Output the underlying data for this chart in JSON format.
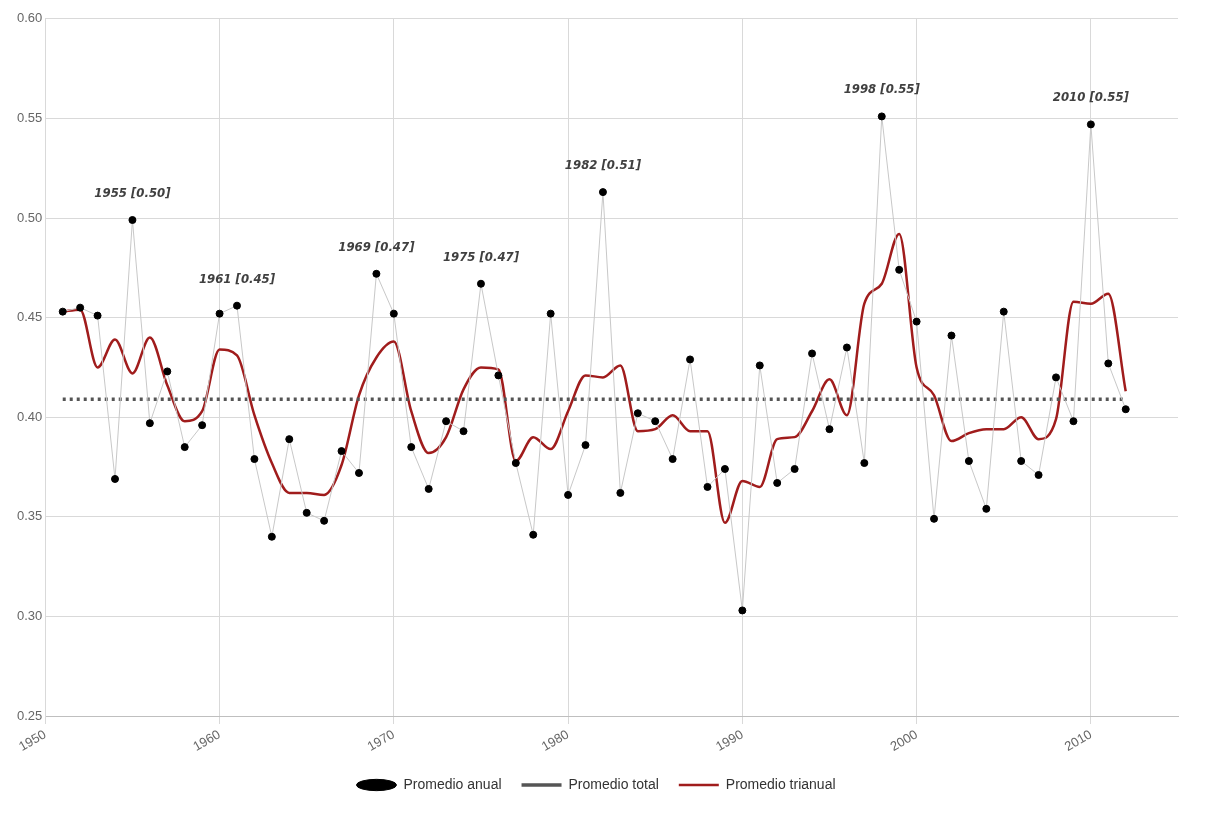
{
  "chart_data": {
    "type": "line",
    "x": [
      1951,
      1952,
      1953,
      1954,
      1955,
      1956,
      1957,
      1958,
      1959,
      1960,
      1961,
      1962,
      1963,
      1964,
      1965,
      1966,
      1967,
      1968,
      1969,
      1970,
      1971,
      1972,
      1973,
      1974,
      1975,
      1976,
      1977,
      1978,
      1979,
      1980,
      1981,
      1982,
      1983,
      1984,
      1985,
      1986,
      1987,
      1988,
      1989,
      1990,
      1991,
      1992,
      1993,
      1994,
      1995,
      1996,
      1997,
      1998,
      1999,
      2000,
      2001,
      2002,
      2003,
      2004,
      2005,
      2006,
      2007,
      2008,
      2009,
      2010,
      2011,
      2012
    ],
    "series": [
      {
        "name": "Promedio anual",
        "color": "#000000",
        "marker": "circle",
        "values": [
          0.453,
          0.455,
          0.451,
          0.369,
          0.499,
          0.397,
          0.423,
          0.385,
          0.396,
          0.452,
          0.456,
          0.379,
          0.34,
          0.389,
          0.352,
          0.348,
          0.383,
          0.372,
          0.472,
          0.452,
          0.385,
          0.364,
          0.398,
          0.393,
          0.467,
          0.421,
          0.377,
          0.341,
          0.452,
          0.361,
          0.386,
          0.513,
          0.362,
          0.402,
          0.398,
          0.379,
          0.429,
          0.365,
          0.374,
          0.303,
          0.426,
          0.367,
          0.374,
          0.432,
          0.394,
          0.435,
          0.377,
          0.551,
          0.474,
          0.448,
          0.349,
          0.441,
          0.378,
          0.354,
          0.453,
          0.378,
          0.371,
          0.42,
          0.398,
          0.547,
          0.427,
          0.404
        ]
      },
      {
        "name": "Promedio total",
        "color": "#555555",
        "marker": "none",
        "line_style": "dotted",
        "x": [
          1951,
          2012
        ],
        "values": [
          0.409,
          0.409
        ]
      },
      {
        "name": "Promedio trianual",
        "color": "#a01c1c",
        "marker": "none",
        "line_style": "solid",
        "values": [
          0.453,
          0.454,
          0.425,
          0.439,
          0.422,
          0.44,
          0.416,
          0.398,
          0.403,
          0.434,
          0.431,
          0.401,
          0.377,
          0.362,
          0.362,
          0.361,
          0.376,
          0.411,
          0.43,
          0.438,
          0.403,
          0.382,
          0.39,
          0.414,
          0.425,
          0.424,
          0.378,
          0.39,
          0.384,
          0.403,
          0.421,
          0.42,
          0.426,
          0.393,
          0.394,
          0.401,
          0.393,
          0.393,
          0.347,
          0.368,
          0.365,
          0.389,
          0.39,
          0.403,
          0.419,
          0.401,
          0.457,
          0.467,
          0.492,
          0.425,
          0.411,
          0.388,
          0.392,
          0.394,
          0.394,
          0.4,
          0.389,
          0.399,
          0.458,
          0.457,
          0.462,
          0.413
        ]
      }
    ],
    "xlim": [
      1950,
      2015
    ],
    "xticks": [
      1950,
      1960,
      1970,
      1980,
      1990,
      2000,
      2010
    ],
    "ylim": [
      0.25,
      0.6
    ],
    "yticks": [
      {
        "value": 0.25,
        "label": "0.25"
      },
      {
        "value": 0.3,
        "label": "0.30"
      },
      {
        "value": 0.35,
        "label": "0.35"
      },
      {
        "value": 0.4,
        "label": "0.40"
      },
      {
        "value": 0.45,
        "label": "0.45"
      },
      {
        "value": 0.5,
        "label": "0.50"
      },
      {
        "value": 0.55,
        "label": "0.55"
      },
      {
        "value": 0.6,
        "label": "0.60"
      }
    ],
    "grid": true,
    "legend": "bottom",
    "annotations": [
      {
        "text": "1955 [0.50]",
        "x": 1955,
        "y": 0.499
      },
      {
        "text": "1961 [0.45]",
        "x": 1961,
        "y": 0.456
      },
      {
        "text": "1969 [0.47]",
        "x": 1969,
        "y": 0.472
      },
      {
        "text": "1975 [0.47]",
        "x": 1975,
        "y": 0.467
      },
      {
        "text": "1982 [0.51]",
        "x": 1982,
        "y": 0.513
      },
      {
        "text": "1998 [0.55]",
        "x": 1998,
        "y": 0.551
      },
      {
        "text": "2010 [0.55]",
        "x": 2010,
        "y": 0.547
      }
    ]
  }
}
